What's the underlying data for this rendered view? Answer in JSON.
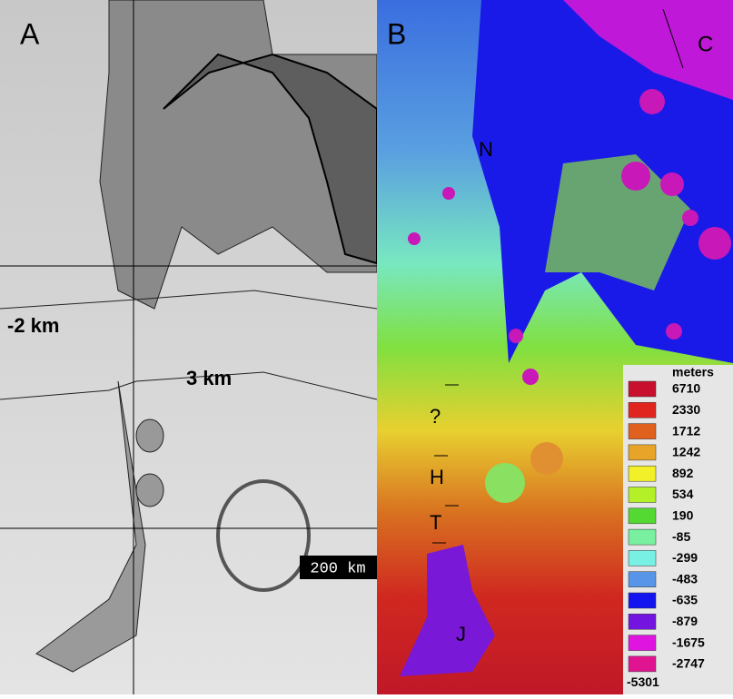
{
  "panels": [
    {
      "label": "A"
    },
    {
      "label": "B"
    }
  ],
  "annotations": {
    "left": [
      "-2 km",
      "3 km"
    ],
    "right": [
      "C",
      "N",
      "?",
      "H",
      "T",
      "J"
    ],
    "scale_bar": "200 km"
  },
  "legend": {
    "title": "meters",
    "entries": [
      {
        "label": "6710",
        "color": "#c8102e"
      },
      {
        "label": "2330",
        "color": "#e0251e"
      },
      {
        "label": "1712",
        "color": "#e0601e"
      },
      {
        "label": "1242",
        "color": "#e8a428"
      },
      {
        "label": "892",
        "color": "#f2f028"
      },
      {
        "label": "534",
        "color": "#b4f028"
      },
      {
        "label": "190",
        "color": "#54d832"
      },
      {
        "label": "-85",
        "color": "#78f0a0"
      },
      {
        "label": "-299",
        "color": "#78f0e4"
      },
      {
        "label": "-483",
        "color": "#5894e8"
      },
      {
        "label": "-635",
        "color": "#1414f0"
      },
      {
        "label": "-879",
        "color": "#7414e0"
      },
      {
        "label": "-1675",
        "color": "#e014e0"
      },
      {
        "label": "-2747",
        "color": "#e01490"
      }
    ],
    "bottom": "-5301"
  }
}
